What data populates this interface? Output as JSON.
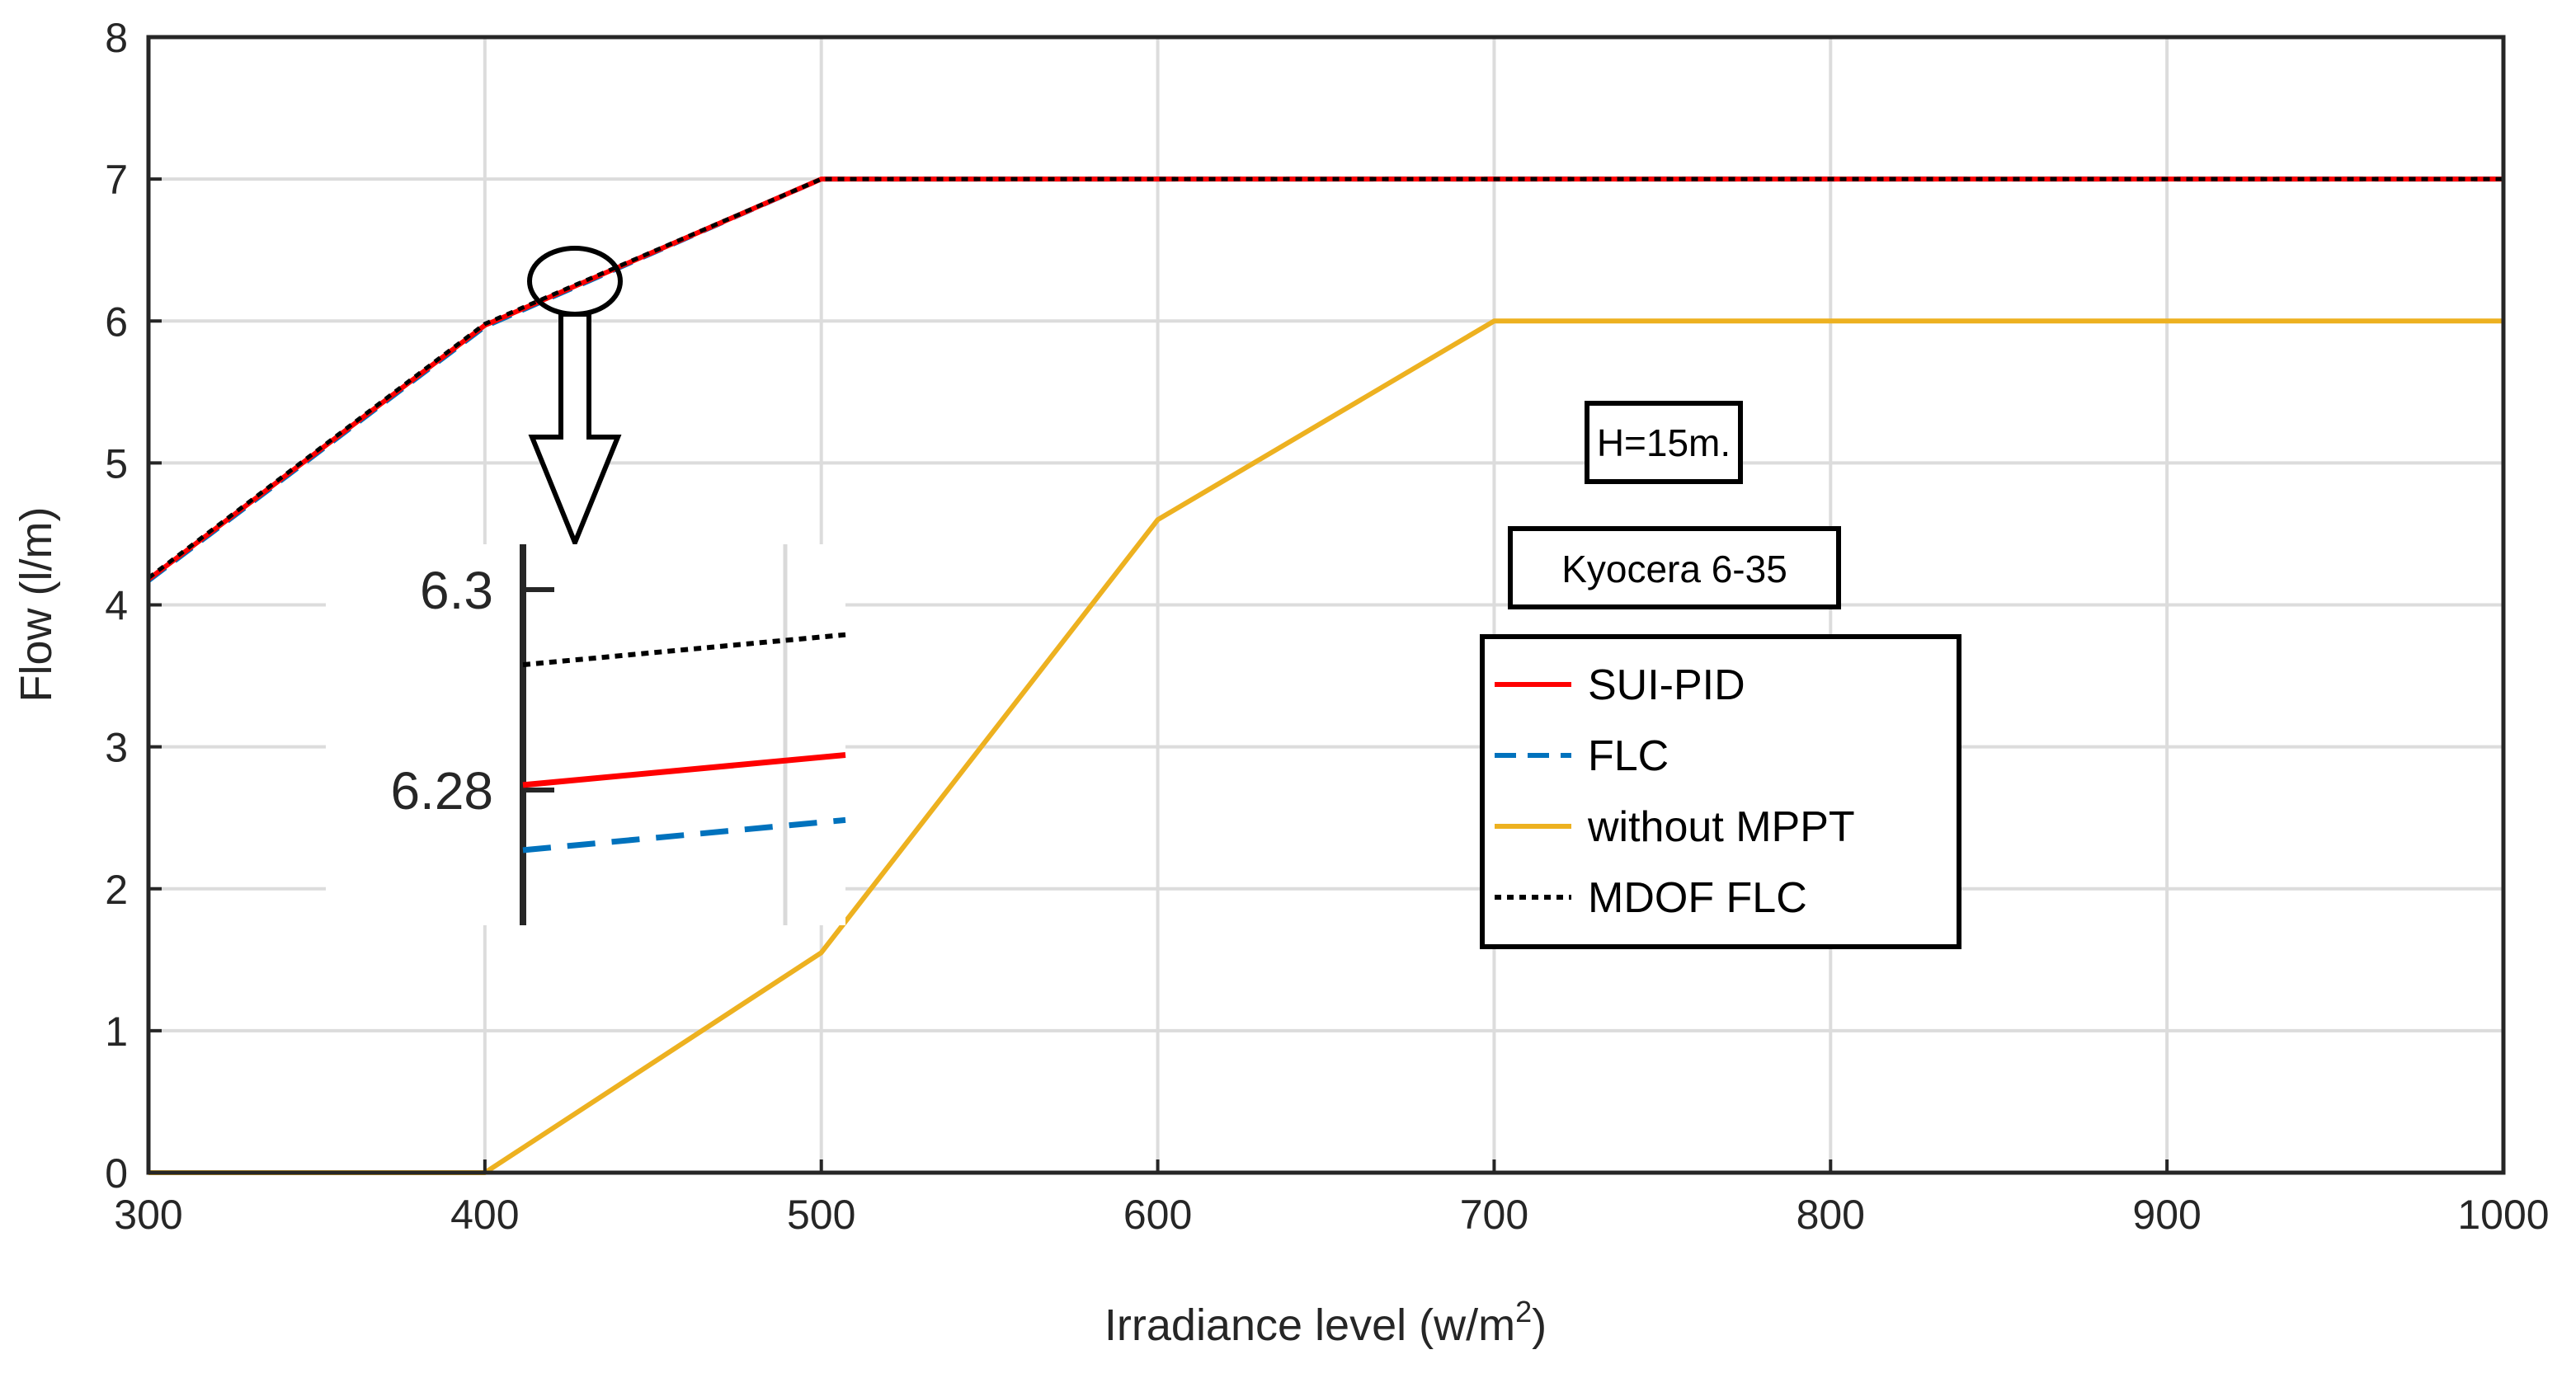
{
  "chart_data": {
    "type": "line",
    "xlabel": "Irradiance level (w/m",
    "xlabel_sup": "2",
    "xlabel_close": ")",
    "ylabel": "Flow (l/m)",
    "xlim": [
      300,
      1000
    ],
    "ylim": [
      0,
      8
    ],
    "xticks": [
      "300",
      "400",
      "500",
      "600",
      "700",
      "800",
      "900",
      "1000"
    ],
    "yticks": [
      "0",
      "1",
      "2",
      "3",
      "4",
      "5",
      "6",
      "7",
      "8"
    ],
    "grid": true,
    "x": [
      300,
      400,
      500,
      600,
      700,
      800,
      900,
      1000
    ],
    "series": [
      {
        "name": "SUI-PID",
        "color": "#ff0000",
        "style": "solid",
        "values": [
          4.18,
          5.97,
          7,
          7,
          7,
          7,
          7,
          7
        ]
      },
      {
        "name": "FLC",
        "color": "#0072bd",
        "style": "dashed",
        "values": [
          4.17,
          5.96,
          7,
          7,
          7,
          7,
          7,
          7
        ]
      },
      {
        "name": "without MPPT",
        "color": "#edb120",
        "style": "solid",
        "values": [
          0,
          0,
          1.55,
          4.6,
          6,
          6,
          6,
          6
        ]
      },
      {
        "name": "MDOF FLC",
        "color": "#000000",
        "style": "dotted",
        "values": [
          4.19,
          5.98,
          7,
          7,
          7,
          7,
          7,
          7
        ]
      }
    ],
    "legend_position": "center-right",
    "annotations": [
      "H=15m.",
      "Kyocera 6-35"
    ],
    "zoom_inset": {
      "yticks": [
        "6.3",
        "6.28"
      ],
      "series": [
        {
          "name": "MDOF FLC",
          "color": "#000000",
          "style": "dotted",
          "start": 6.2925,
          "end": 6.2955
        },
        {
          "name": "SUI-PID",
          "color": "#ff0000",
          "style": "solid",
          "start": 6.2805,
          "end": 6.2835
        },
        {
          "name": "FLC",
          "color": "#0072bd",
          "style": "dashed",
          "start": 6.274,
          "end": 6.277
        }
      ]
    }
  }
}
